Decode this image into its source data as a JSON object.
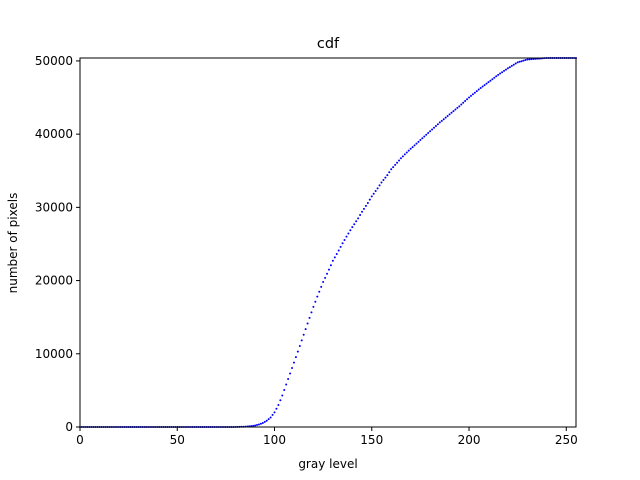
{
  "chart_data": {
    "type": "scatter",
    "title": "cdf",
    "xlabel": "gray level",
    "ylabel": "number of pixels",
    "xlim": [
      0,
      255
    ],
    "ylim": [
      0,
      50400
    ],
    "xticks": [
      0,
      50,
      100,
      150,
      200,
      250
    ],
    "yticks": [
      0,
      10000,
      20000,
      30000,
      40000,
      50000
    ],
    "grid": false,
    "legend": "none",
    "marker_color": "#0000ff",
    "series": [
      {
        "x": [
          0,
          80,
          85,
          88,
          90,
          92,
          94,
          96,
          98,
          100,
          102,
          104,
          106,
          108,
          110,
          112,
          115,
          118,
          120,
          122,
          125,
          128,
          130,
          133,
          135,
          137,
          140,
          143,
          145,
          148,
          150,
          153,
          155,
          158,
          160,
          163,
          165,
          168,
          170,
          173,
          175,
          180,
          185,
          190,
          195,
          200,
          205,
          210,
          215,
          220,
          225,
          230,
          235,
          240,
          245,
          250,
          255
        ],
        "y": [
          0,
          0,
          50,
          120,
          200,
          350,
          550,
          850,
          1300,
          2000,
          3000,
          4300,
          5800,
          7300,
          8800,
          10300,
          12600,
          14900,
          16400,
          17800,
          19800,
          21500,
          22700,
          24100,
          25100,
          26000,
          27300,
          28500,
          29400,
          30600,
          31500,
          32600,
          33400,
          34400,
          35200,
          36100,
          36700,
          37500,
          38000,
          38700,
          39200,
          40400,
          41600,
          42700,
          43800,
          45000,
          46100,
          47100,
          48100,
          49000,
          49800,
          50200,
          50300,
          50400,
          50400,
          50400,
          50400
        ]
      }
    ]
  }
}
